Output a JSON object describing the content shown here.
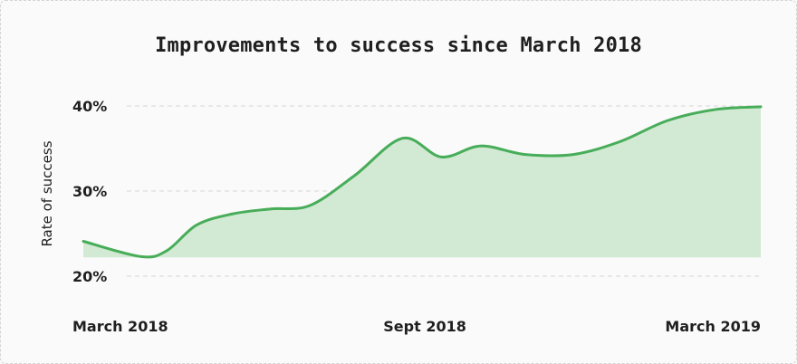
{
  "chart_data": {
    "type": "area",
    "title": "Improvements to success since March 2018",
    "xlabel": "",
    "ylabel": "Rate of success",
    "ylim": [
      20,
      40
    ],
    "yticks": [
      {
        "value": 20,
        "label": "20%"
      },
      {
        "value": 30,
        "label": "30%"
      },
      {
        "value": 40,
        "label": "40%"
      }
    ],
    "xlim": [
      "2018-03-01",
      "2019-03-01"
    ],
    "xticks": [
      {
        "date": "2018-03-01",
        "label": "March 2018"
      },
      {
        "date": "2018-09-01",
        "label": "Sept 2018"
      },
      {
        "date": "2019-03-01",
        "label": "March 2019"
      }
    ],
    "series": [
      {
        "points": [
          {
            "x": "2018-03-01",
            "y": 24.1
          },
          {
            "x": "2018-04-01",
            "y": 22.3
          },
          {
            "x": "2018-04-15",
            "y": 23.0
          },
          {
            "x": "2018-05-01",
            "y": 26.0
          },
          {
            "x": "2018-05-20",
            "y": 27.3
          },
          {
            "x": "2018-06-10",
            "y": 27.9
          },
          {
            "x": "2018-07-01",
            "y": 28.3
          },
          {
            "x": "2018-07-25",
            "y": 31.8
          },
          {
            "x": "2018-08-20",
            "y": 36.2
          },
          {
            "x": "2018-09-10",
            "y": 34.0
          },
          {
            "x": "2018-10-01",
            "y": 35.3
          },
          {
            "x": "2018-10-25",
            "y": 34.3
          },
          {
            "x": "2018-11-20",
            "y": 34.3
          },
          {
            "x": "2018-12-15",
            "y": 35.8
          },
          {
            "x": "2019-01-10",
            "y": 38.3
          },
          {
            "x": "2019-02-05",
            "y": 39.6
          },
          {
            "x": "2019-03-01",
            "y": 39.9
          }
        ]
      }
    ],
    "area_baseline": 22.2,
    "grid": true,
    "legend": "none",
    "colors": {
      "line": "#47ad59",
      "fill": "#d2e9d3",
      "grid": "#d6d6d6",
      "text": "#1f1f1f"
    }
  }
}
